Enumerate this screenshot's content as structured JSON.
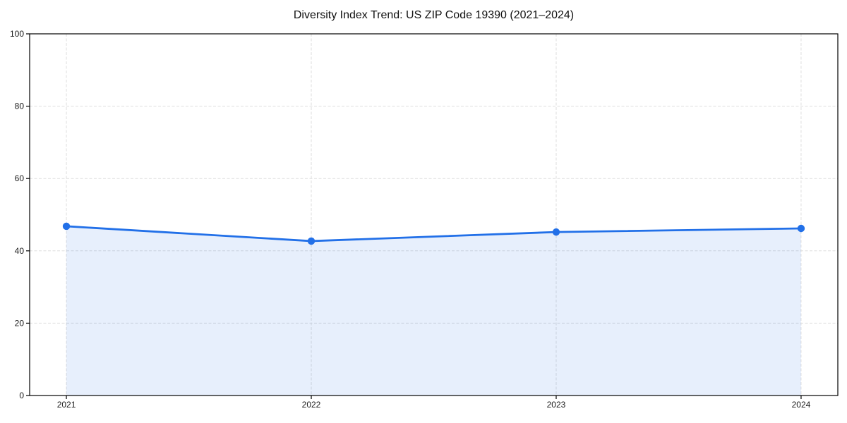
{
  "title": "Diversity Index Trend: US ZIP Code 19390 (2021–2024)",
  "chart_data": {
    "type": "line",
    "title": "Diversity Index Trend: US ZIP Code 19390 (2021–2024)",
    "series_name": "Diversity Index",
    "x": [
      2021,
      2022,
      2023,
      2024
    ],
    "x_tick_labels": [
      "2021",
      "2022",
      "2023",
      "2024"
    ],
    "values": [
      46.8,
      42.7,
      45.2,
      46.2
    ],
    "xlabel": "",
    "ylabel": "",
    "xlim": [
      2020.85,
      2024.15
    ],
    "ylim": [
      0,
      100
    ],
    "yticks": [
      0,
      20,
      40,
      60,
      80,
      100
    ],
    "grid": true,
    "grid_style": "dashed",
    "legend_position": "none",
    "area_fill": true,
    "marker": "circle",
    "colors": {
      "line": "#2270e8",
      "marker": "#2270e8",
      "area": "#2270e8",
      "gridline": "#dedede",
      "axis": "#000000",
      "tick_label": "#1a1a1a",
      "title": "#111111",
      "background": "#ffffff"
    }
  }
}
